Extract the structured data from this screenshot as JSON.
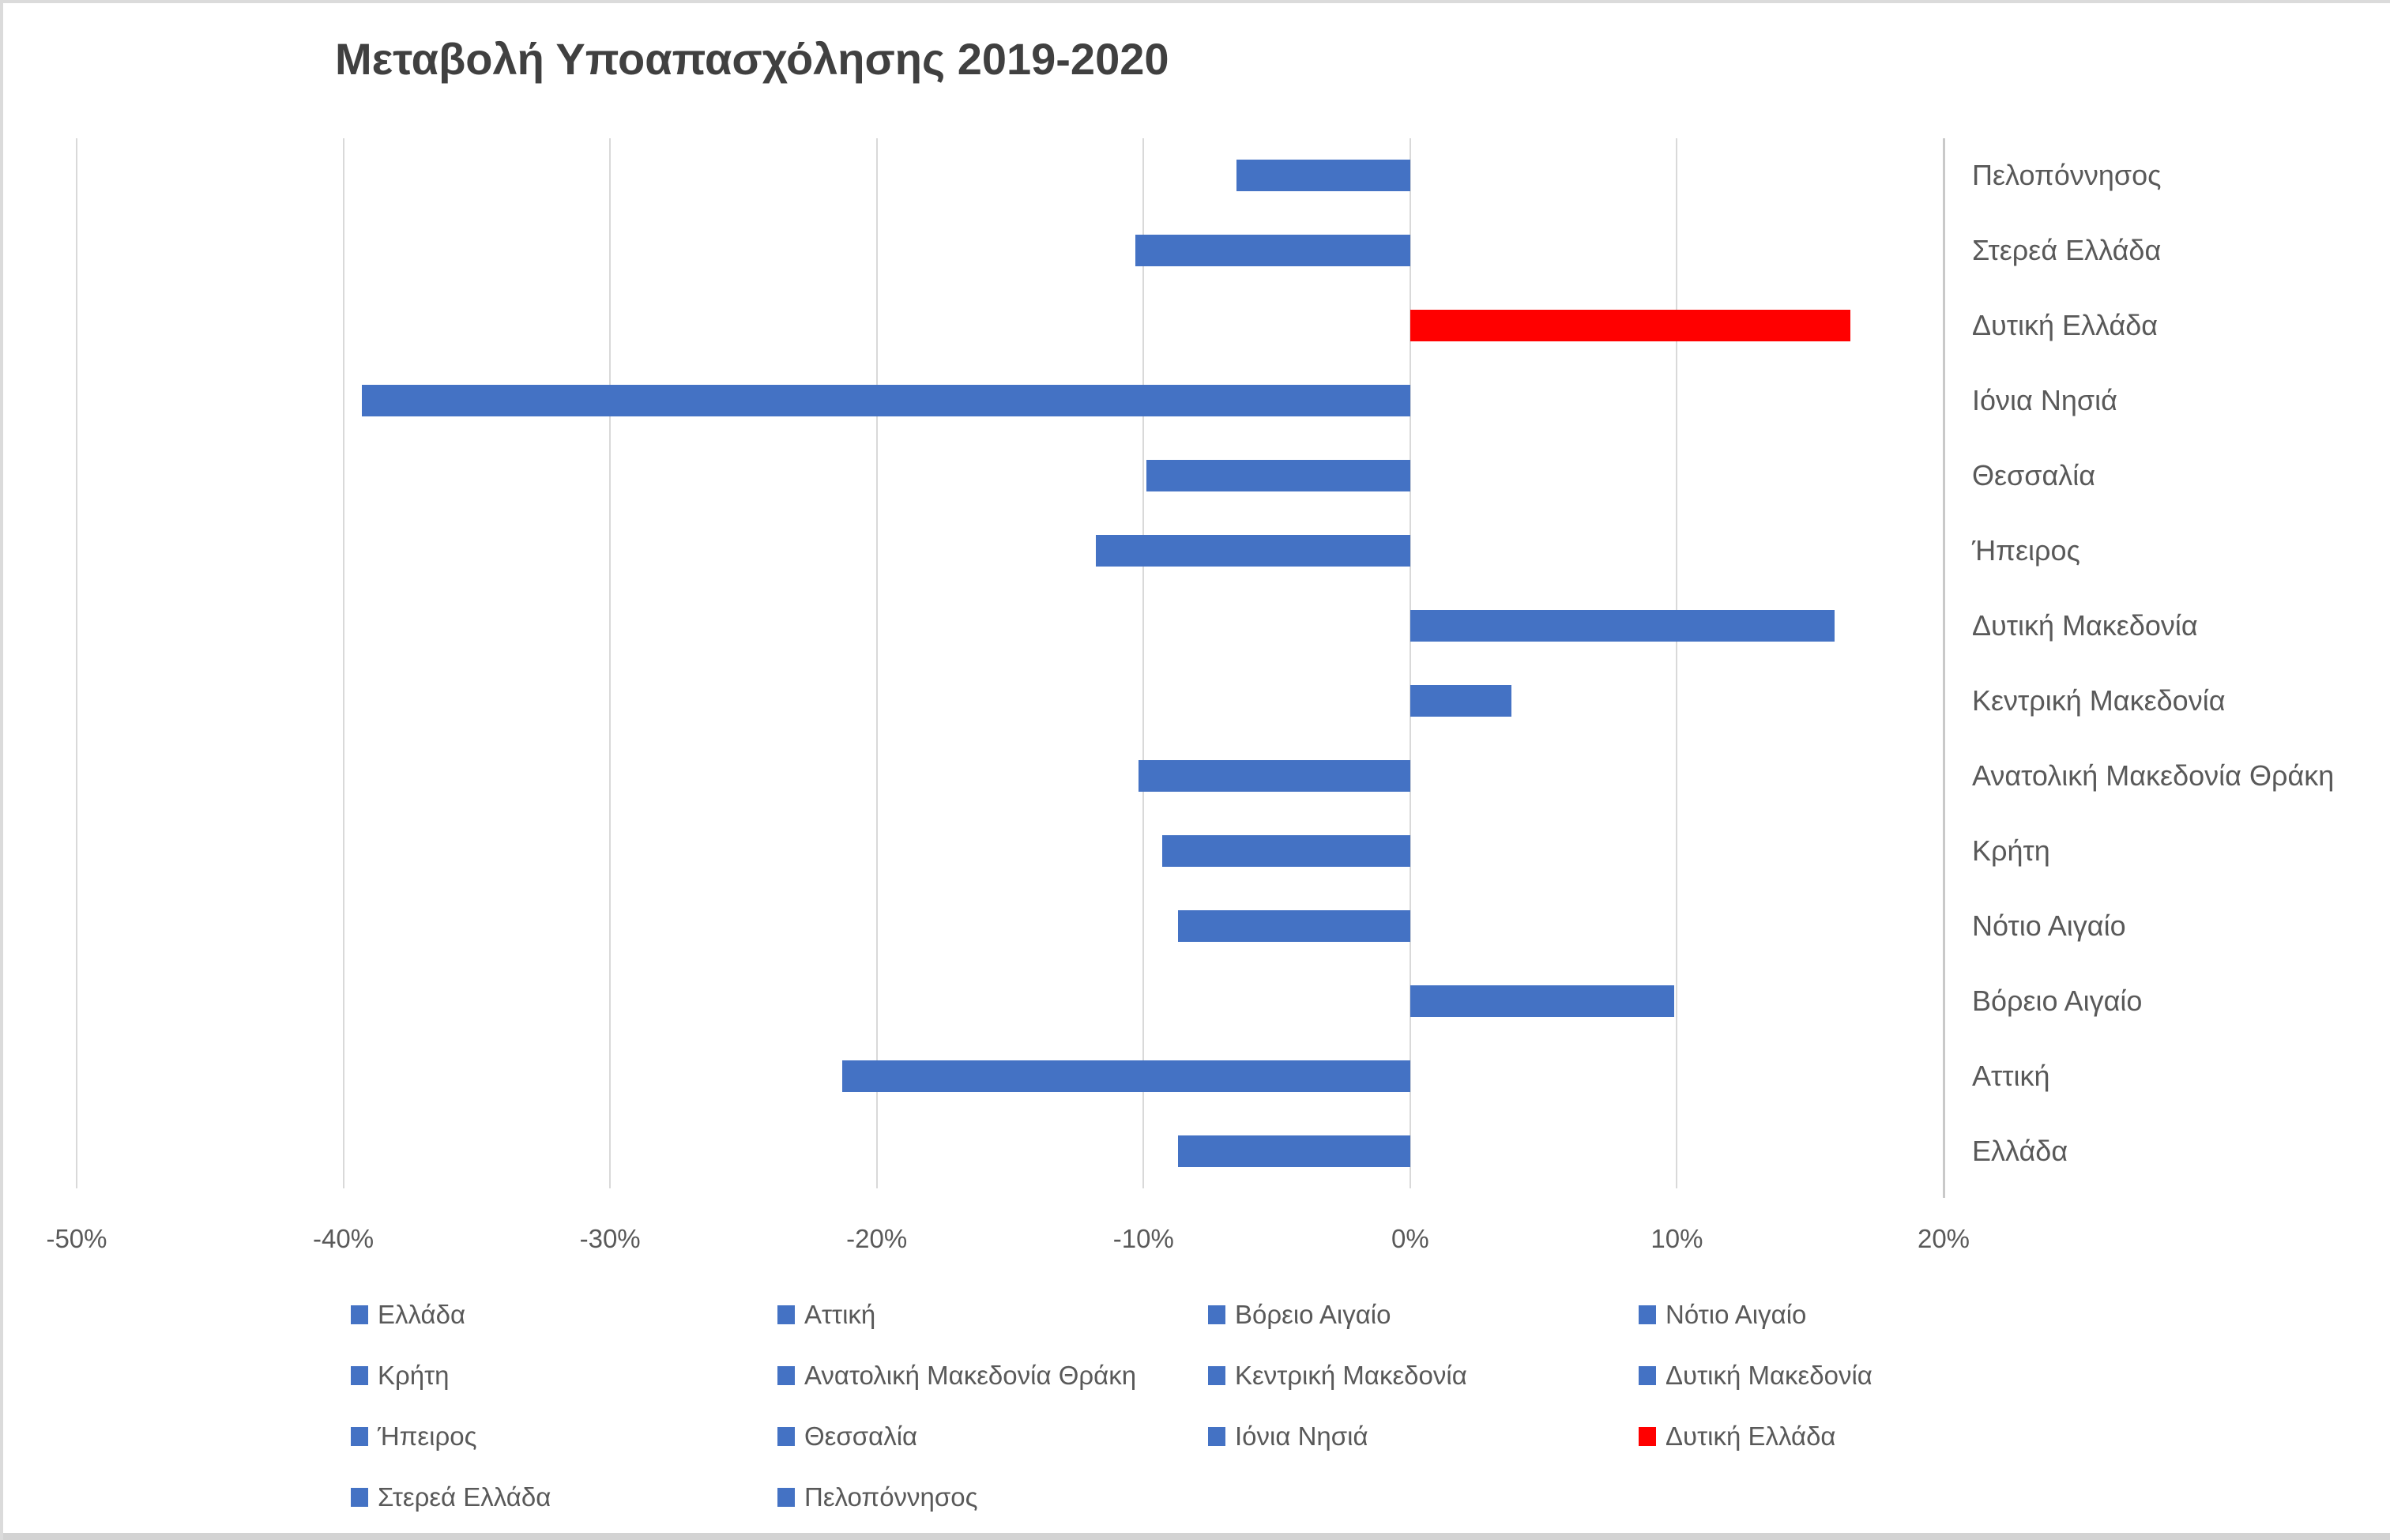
{
  "title": "Μεταβολή Υποαπασχόλησης 2019-2020",
  "colors": {
    "bar_blue": "#4472C4",
    "bar_red": "#FF0000",
    "title_text": "#404040",
    "axis_text": "#595959",
    "gridline": "#D9D9D9",
    "axis_line": "#C9C9C9"
  },
  "chart_data": {
    "type": "bar",
    "orientation": "horizontal",
    "title": "Μεταβολή Υποαπασχόλησης 2019-2020",
    "unit": "%",
    "xlim": [
      -50,
      20
    ],
    "x_tick_step": 10,
    "x_tick_labels": [
      "-50%",
      "-40%",
      "-30%",
      "-20%",
      "-10%",
      "0%",
      "10%",
      "20%"
    ],
    "grid": true,
    "category_axis_side": "right",
    "legend_position": "bottom",
    "rows_top_to_bottom": [
      {
        "label": "Πελοπόννησος",
        "value": -6.5,
        "color": "#4472C4"
      },
      {
        "label": "Στερεά Ελλάδα",
        "value": -10.3,
        "color": "#4472C4"
      },
      {
        "label": "Δυτική Ελλάδα",
        "value": 16.5,
        "color": "#FF0000"
      },
      {
        "label": "Ιόνια Νησιά",
        "value": -39.3,
        "color": "#4472C4"
      },
      {
        "label": "Θεσσαλία",
        "value": -9.9,
        "color": "#4472C4"
      },
      {
        "label": "Ήπειρος",
        "value": -11.8,
        "color": "#4472C4"
      },
      {
        "label": "Δυτική Μακεδονία",
        "value": 15.9,
        "color": "#4472C4"
      },
      {
        "label": "Κεντρική Μακεδονία",
        "value": 3.8,
        "color": "#4472C4"
      },
      {
        "label": "Ανατολική Μακεδονία Θράκη",
        "value": -10.2,
        "color": "#4472C4"
      },
      {
        "label": "Κρήτη",
        "value": -9.3,
        "color": "#4472C4"
      },
      {
        "label": "Νότιο Αιγαίο",
        "value": -8.7,
        "color": "#4472C4"
      },
      {
        "label": "Βόρειο Αιγαίο",
        "value": 9.9,
        "color": "#4472C4"
      },
      {
        "label": "Αττική",
        "value": -21.3,
        "color": "#4472C4"
      },
      {
        "label": "Ελλάδα",
        "value": -8.7,
        "color": "#4472C4"
      }
    ],
    "legend": [
      {
        "label": "Ελλάδα",
        "color": "#4472C4"
      },
      {
        "label": "Αττική",
        "color": "#4472C4"
      },
      {
        "label": "Βόρειο Αιγαίο",
        "color": "#4472C4"
      },
      {
        "label": "Νότιο Αιγαίο",
        "color": "#4472C4"
      },
      {
        "label": "Κρήτη",
        "color": "#4472C4"
      },
      {
        "label": "Ανατολική Μακεδονία Θράκη",
        "color": "#4472C4"
      },
      {
        "label": "Κεντρική Μακεδονία",
        "color": "#4472C4"
      },
      {
        "label": "Δυτική Μακεδονία",
        "color": "#4472C4"
      },
      {
        "label": "Ήπειρος",
        "color": "#4472C4"
      },
      {
        "label": "Θεσσαλία",
        "color": "#4472C4"
      },
      {
        "label": "Ιόνια Νησιά",
        "color": "#4472C4"
      },
      {
        "label": "Δυτική Ελλάδα",
        "color": "#FF0000"
      },
      {
        "label": "Στερεά Ελλάδα",
        "color": "#4472C4"
      },
      {
        "label": "Πελοπόννησος",
        "color": "#4472C4"
      }
    ]
  }
}
